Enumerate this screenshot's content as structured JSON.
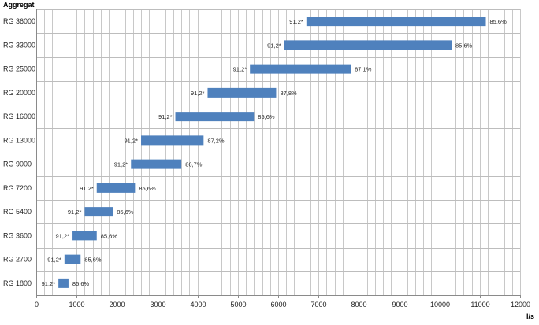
{
  "chart_data": {
    "type": "bar",
    "orientation": "horizontal-range",
    "ylabel": "Aggregat",
    "xlabel": "l/s",
    "xlim": [
      0,
      12000
    ],
    "xticks": [
      0,
      1000,
      2000,
      3000,
      4000,
      5000,
      6000,
      7000,
      8000,
      9000,
      10000,
      11000,
      12000
    ],
    "grid": true,
    "legend": "none",
    "bar_color": "#4f81bd",
    "categories": [
      "RG 36000",
      "RG 33000",
      "RG 25000",
      "RG 20000",
      "RG 16000",
      "RG 13000",
      "RG 9000",
      "RG 7200",
      "RG 5400",
      "RG 3600",
      "RG 2700",
      "RG 1800"
    ],
    "ranges": [
      {
        "start": 6700,
        "end": 11150,
        "start_label": "91,2*",
        "end_label": "85,6%"
      },
      {
        "start": 6150,
        "end": 10300,
        "start_label": "91,2*",
        "end_label": "85,6%"
      },
      {
        "start": 5300,
        "end": 7800,
        "start_label": "91,2*",
        "end_label": "87,1%"
      },
      {
        "start": 4250,
        "end": 5950,
        "start_label": "91,2*",
        "end_label": "87,8%"
      },
      {
        "start": 3450,
        "end": 5400,
        "start_label": "91,2*",
        "end_label": "85,6%"
      },
      {
        "start": 2600,
        "end": 4150,
        "start_label": "91,2*",
        "end_label": "87,2%"
      },
      {
        "start": 2350,
        "end": 3600,
        "start_label": "91,2*",
        "end_label": "86,7%"
      },
      {
        "start": 1500,
        "end": 2450,
        "start_label": "91,2*",
        "end_label": "85,6%"
      },
      {
        "start": 1200,
        "end": 1900,
        "start_label": "91,2*",
        "end_label": "85,6%"
      },
      {
        "start": 900,
        "end": 1500,
        "start_label": "91,2*",
        "end_label": "85,6%"
      },
      {
        "start": 700,
        "end": 1100,
        "start_label": "91,2*",
        "end_label": "85,6%"
      },
      {
        "start": 550,
        "end": 800,
        "start_label": "91,2*",
        "end_label": "85,6%"
      }
    ]
  }
}
